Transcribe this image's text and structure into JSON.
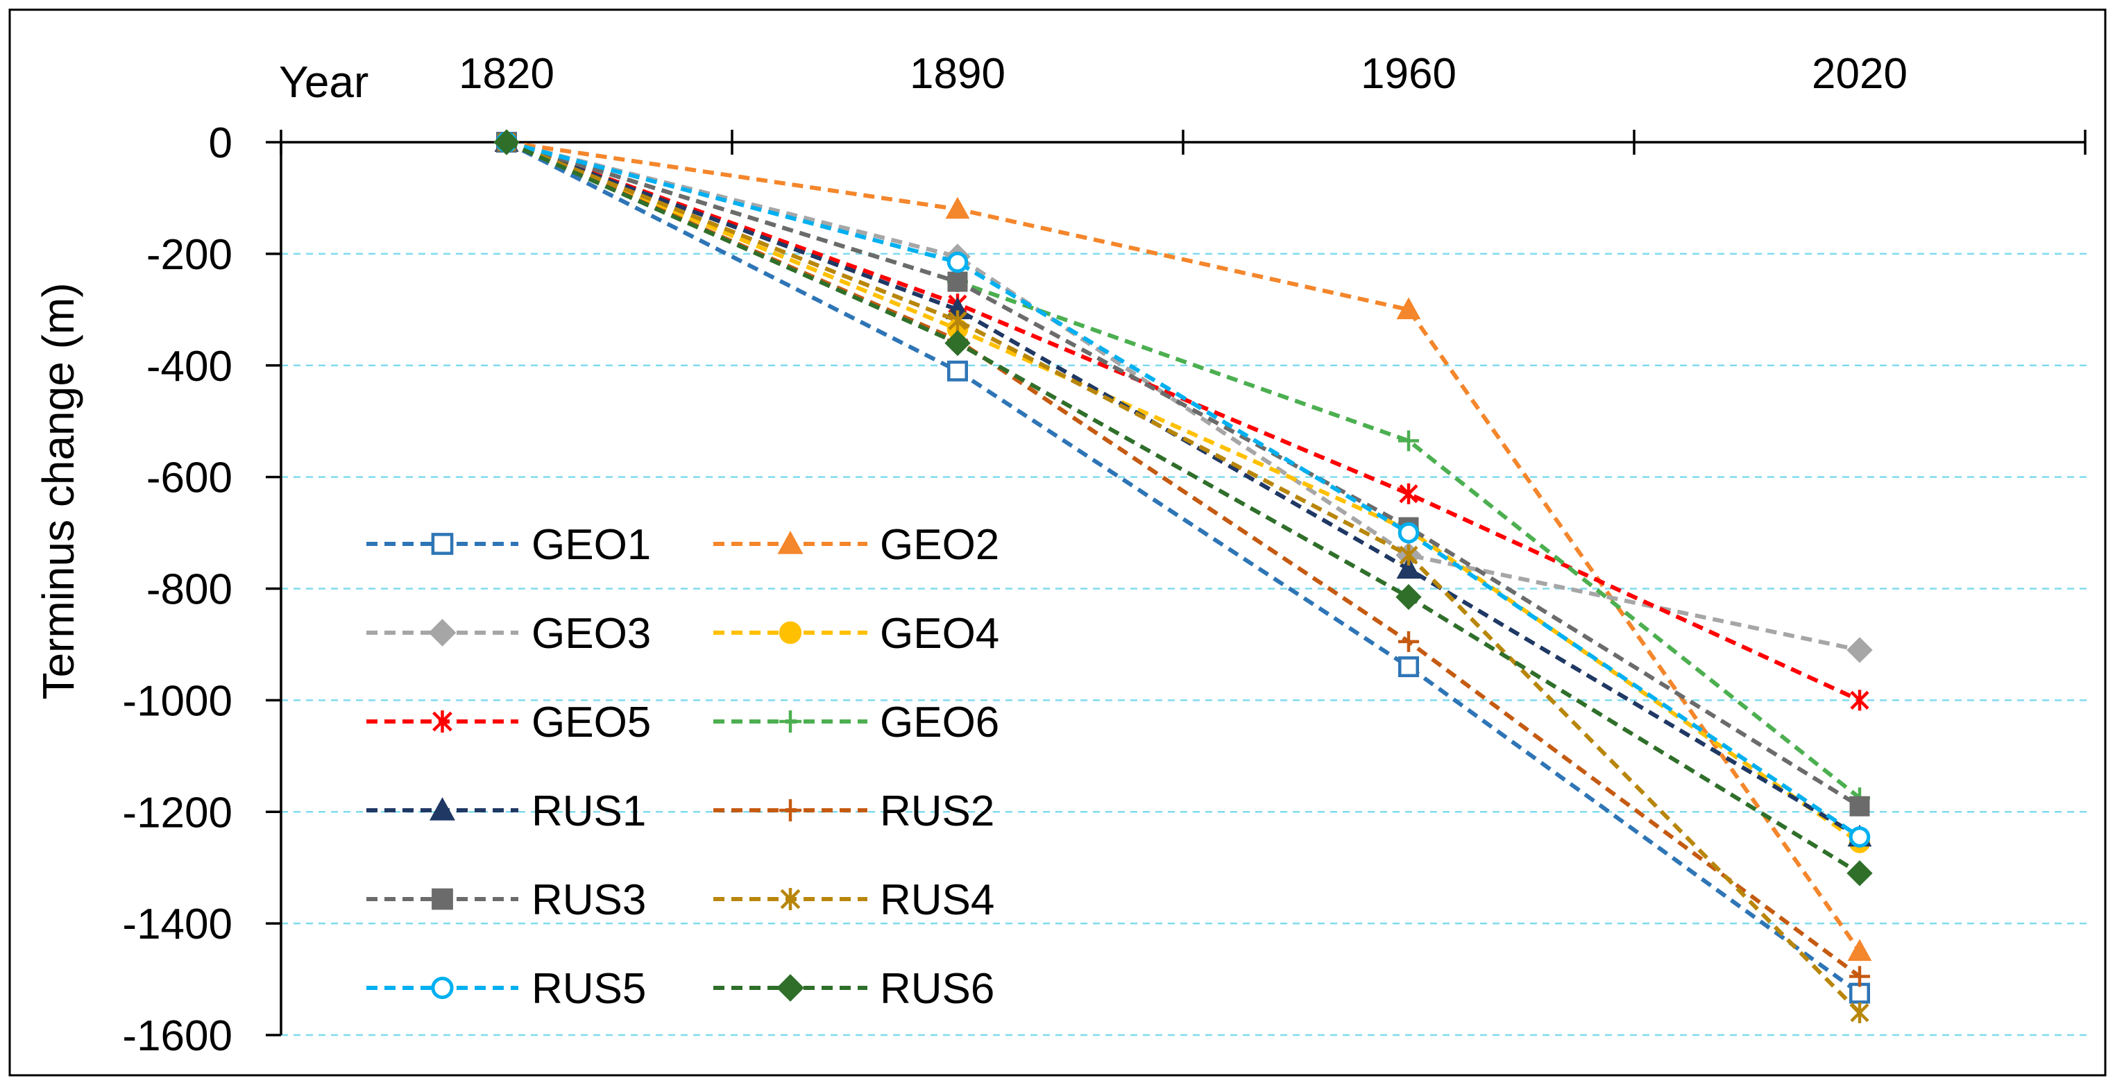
{
  "chart_data": {
    "type": "line",
    "title": "",
    "xlabel": "Year",
    "ylabel": "Terminus change (m)",
    "x_ticks": [
      1820,
      1890,
      1960,
      2020
    ],
    "x_tick_labels": [
      "1820",
      "1890",
      "1960",
      "2020"
    ],
    "y_ticks": [
      0,
      -200,
      -400,
      -600,
      -800,
      -1000,
      -1200,
      -1400,
      -1600
    ],
    "y_tick_labels": [
      "0",
      "-200",
      "-400",
      "-600",
      "-800",
      "-1000",
      "-1200",
      "-1400",
      "-1600"
    ],
    "ylim": [
      -1600,
      0
    ],
    "grid": "horizontal dashed",
    "legend_position": "lower-left",
    "series": [
      {
        "name": "GEO1",
        "color": "#2e75b6",
        "marker": "square-open",
        "values": [
          0,
          -410,
          -940,
          -1525
        ]
      },
      {
        "name": "GEO2",
        "color": "#f4862b",
        "marker": "triangle",
        "values": [
          0,
          -120,
          -300,
          -1450
        ]
      },
      {
        "name": "GEO3",
        "color": "#a6a6a6",
        "marker": "diamond",
        "values": [
          0,
          -205,
          -740,
          -910
        ]
      },
      {
        "name": "GEO4",
        "color": "#ffc000",
        "marker": "circle",
        "values": [
          0,
          -335,
          -695,
          -1255
        ]
      },
      {
        "name": "GEO5",
        "color": "#ff0000",
        "marker": "star",
        "values": [
          0,
          -290,
          -630,
          -1000
        ]
      },
      {
        "name": "GEO6",
        "color": "#4caf50",
        "marker": "plus",
        "values": [
          0,
          -250,
          -535,
          -1175
        ]
      },
      {
        "name": "RUS1",
        "color": "#1f3864",
        "marker": "triangle",
        "values": [
          0,
          -300,
          -765,
          -1245
        ]
      },
      {
        "name": "RUS2",
        "color": "#c55a11",
        "marker": "plus",
        "values": [
          0,
          -355,
          -895,
          -1495
        ]
      },
      {
        "name": "RUS3",
        "color": "#6b6b6b",
        "marker": "square",
        "values": [
          0,
          -250,
          -690,
          -1190
        ]
      },
      {
        "name": "RUS4",
        "color": "#b8860b",
        "marker": "star",
        "values": [
          0,
          -320,
          -740,
          -1560
        ]
      },
      {
        "name": "RUS5",
        "color": "#00b0f0",
        "marker": "circle-open",
        "values": [
          0,
          -215,
          -700,
          -1245
        ]
      },
      {
        "name": "RUS6",
        "color": "#2f6f2a",
        "marker": "diamond",
        "values": [
          0,
          -360,
          -815,
          -1310
        ]
      }
    ]
  }
}
